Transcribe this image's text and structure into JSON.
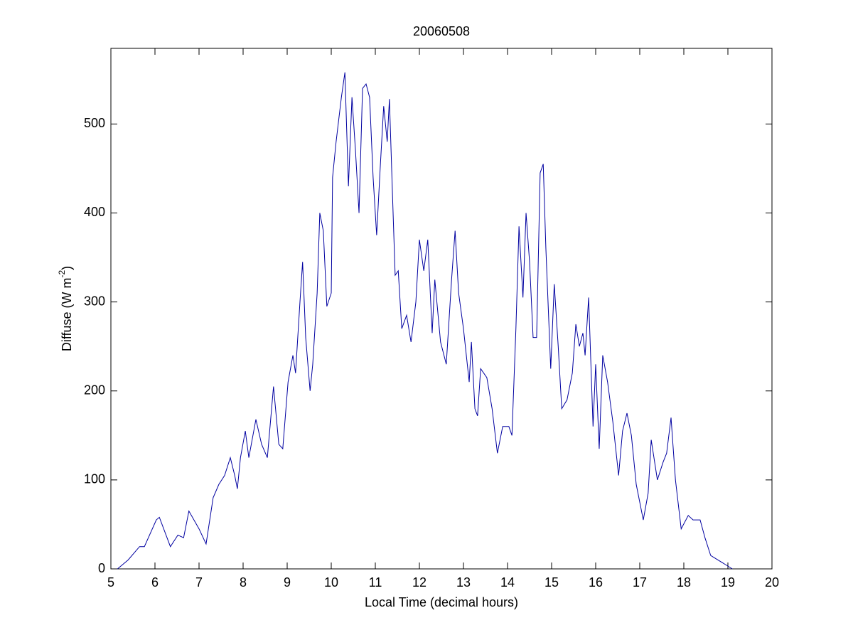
{
  "chart_data": {
    "type": "line",
    "title": "20060508",
    "xlabel": "Local Time (decimal hours)",
    "ylabel_parts": [
      "Diffuse (W m",
      "-2",
      ")"
    ],
    "xlim": [
      5,
      20
    ],
    "xticks": [
      5,
      6,
      7,
      8,
      9,
      10,
      11,
      12,
      13,
      14,
      15,
      16,
      17,
      18,
      19,
      20
    ],
    "ylim": [
      0,
      585
    ],
    "yticks": [
      0,
      100,
      200,
      300,
      400,
      500
    ],
    "grid": false,
    "series": [
      {
        "color": "#0000a0",
        "x": [
          5.15,
          5.39,
          5.65,
          5.76,
          6.03,
          6.1,
          6.35,
          6.52,
          6.65,
          6.77,
          7.0,
          7.16,
          7.32,
          7.45,
          7.58,
          7.71,
          7.81,
          7.87,
          7.94,
          8.05,
          8.13,
          8.29,
          8.42,
          8.55,
          8.69,
          8.81,
          8.9,
          9.02,
          9.13,
          9.19,
          9.29,
          9.35,
          9.42,
          9.52,
          9.58,
          9.68,
          9.74,
          9.82,
          9.9,
          10.0,
          10.03,
          10.11,
          10.23,
          10.31,
          10.39,
          10.47,
          10.55,
          10.63,
          10.71,
          10.79,
          10.87,
          10.95,
          11.03,
          11.11,
          11.19,
          11.27,
          11.32,
          11.39,
          11.45,
          11.52,
          11.6,
          11.71,
          11.81,
          11.92,
          12.0,
          12.1,
          12.19,
          12.29,
          12.35,
          12.48,
          12.61,
          12.73,
          12.81,
          12.89,
          13.0,
          13.13,
          13.18,
          13.26,
          13.32,
          13.39,
          13.53,
          13.65,
          13.77,
          13.89,
          14.03,
          14.1,
          14.19,
          14.26,
          14.35,
          14.42,
          14.5,
          14.58,
          14.66,
          14.74,
          14.81,
          14.87,
          14.98,
          15.06,
          15.15,
          15.23,
          15.35,
          15.47,
          15.55,
          15.63,
          15.71,
          15.76,
          15.84,
          15.94,
          16.0,
          16.08,
          16.16,
          16.27,
          16.39,
          16.52,
          16.61,
          16.71,
          16.81,
          16.92,
          17.08,
          17.19,
          17.26,
          17.4,
          17.53,
          17.61,
          17.71,
          17.81,
          17.94,
          18.1,
          18.21,
          18.37,
          18.48,
          18.61,
          18.94,
          19.1
        ],
        "values": [
          0,
          10,
          25,
          25,
          55,
          58,
          25,
          38,
          35,
          65,
          45,
          28,
          80,
          95,
          105,
          125,
          105,
          90,
          125,
          155,
          125,
          168,
          140,
          125,
          205,
          140,
          135,
          210,
          240,
          220,
          300,
          345,
          260,
          200,
          230,
          310,
          400,
          380,
          295,
          310,
          440,
          480,
          530,
          558,
          430,
          530,
          470,
          400,
          540,
          545,
          530,
          440,
          375,
          450,
          520,
          480,
          528,
          420,
          330,
          335,
          270,
          285,
          255,
          300,
          370,
          335,
          370,
          265,
          325,
          255,
          230,
          325,
          380,
          310,
          270,
          210,
          255,
          180,
          172,
          225,
          215,
          180,
          130,
          160,
          160,
          150,
          270,
          385,
          305,
          400,
          345,
          260,
          260,
          445,
          455,
          360,
          225,
          320,
          250,
          180,
          190,
          220,
          275,
          250,
          265,
          240,
          305,
          160,
          230,
          135,
          240,
          210,
          165,
          105,
          155,
          175,
          150,
          95,
          55,
          85,
          145,
          100,
          120,
          130,
          170,
          100,
          45,
          60,
          55,
          55,
          35,
          15,
          5,
          0
        ]
      }
    ]
  }
}
